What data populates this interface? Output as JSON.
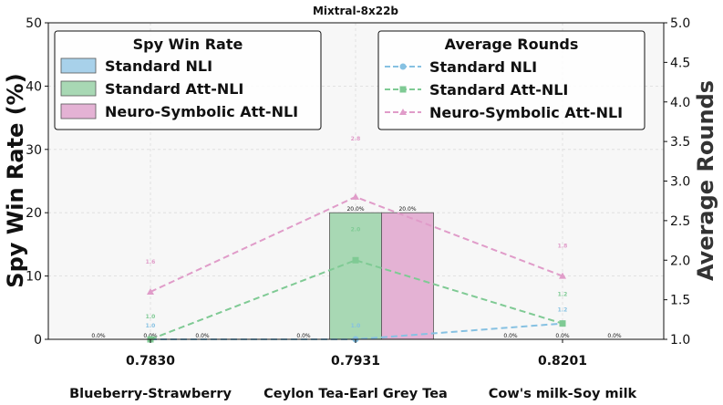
{
  "colors": {
    "standard_nli": "#a8d1ea",
    "standard_att_nli": "#a8d8b4",
    "neuro_symbolic_att_nli": "#e4b2d4",
    "line_standard_nli": "#86c1e2",
    "line_standard_att_nli": "#7fca94",
    "line_neuro_symbolic_att_nli": "#e09cc9"
  },
  "chart_data": {
    "type": "bar",
    "title": "Mixtral-8x22b",
    "categories": [
      "0.7830",
      "0.7931",
      "0.8201"
    ],
    "category_names": [
      "Blueberry-Strawberry",
      "Ceylon Tea-Earl Grey Tea",
      "Cow's milk-Soy milk"
    ],
    "ylabel": "Spy Win Rate (%)",
    "y2label": "Average Rounds",
    "ylim": [
      0,
      50
    ],
    "y2lim": [
      1.0,
      5.0
    ],
    "yticks": [
      "0",
      "10",
      "20",
      "30",
      "40",
      "50"
    ],
    "y2ticks": [
      "1.0",
      "1.5",
      "2.0",
      "2.5",
      "3.0",
      "3.5",
      "4.0",
      "4.5",
      "5.0"
    ],
    "grid": true,
    "legend_left": {
      "title": "Spy Win Rate",
      "position": "top-left",
      "entries": [
        "Standard NLI",
        "Standard Att-NLI",
        "Neuro-Symbolic Att-NLI"
      ]
    },
    "legend_right": {
      "title": "Average Rounds",
      "position": "top-right",
      "entries": [
        "Standard NLI",
        "Standard Att-NLI",
        "Neuro-Symbolic Att-NLI"
      ]
    },
    "bar_series": [
      {
        "name": "Standard NLI",
        "values": [
          0.0,
          0.0,
          0.0
        ],
        "labels": [
          "0.0%",
          "0.0%",
          "0.0%"
        ]
      },
      {
        "name": "Standard Att-NLI",
        "values": [
          0.0,
          20.0,
          0.0
        ],
        "labels": [
          "0.0%",
          "20.0%",
          "0.0%"
        ]
      },
      {
        "name": "Neuro-Symbolic Att-NLI",
        "values": [
          0.0,
          20.0,
          0.0
        ],
        "labels": [
          "0.0%",
          "20.0%",
          "0.0%"
        ]
      }
    ],
    "line_series": [
      {
        "name": "Standard NLI",
        "values": [
          1.0,
          1.0,
          1.2
        ],
        "labels": [
          "1.0",
          "1.0",
          "1.2"
        ]
      },
      {
        "name": "Standard Att-NLI",
        "values": [
          1.0,
          2.0,
          1.2
        ],
        "labels": [
          "1.0",
          "2.0",
          "1.2"
        ]
      },
      {
        "name": "Neuro-Symbolic Att-NLI",
        "values": [
          1.6,
          2.8,
          1.8
        ],
        "labels": [
          "1.6",
          "2.8",
          "1.8"
        ]
      }
    ]
  }
}
